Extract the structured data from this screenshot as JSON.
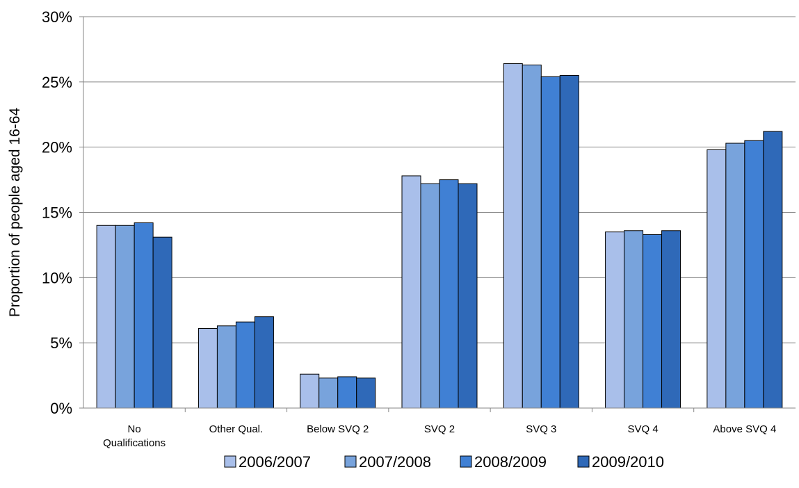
{
  "chart_data": {
    "type": "bar",
    "title": "",
    "xlabel": "",
    "ylabel": "Proportion of people aged 16-64",
    "ylim": [
      0,
      30
    ],
    "y_ticks": [
      "0%",
      "5%",
      "10%",
      "15%",
      "20%",
      "25%",
      "30%"
    ],
    "y_tick_values": [
      0,
      5,
      10,
      15,
      20,
      25,
      30
    ],
    "grid": true,
    "legend_position": "bottom",
    "categories": [
      [
        "No",
        "Qualifications"
      ],
      [
        "Other Qual."
      ],
      [
        "Below SVQ 2"
      ],
      [
        "SVQ 2"
      ],
      [
        "SVQ 3"
      ],
      [
        "SVQ 4"
      ],
      [
        "Above SVQ 4"
      ]
    ],
    "series": [
      {
        "name": "2006/2007",
        "color": "#a9bfea",
        "values": [
          14.0,
          6.1,
          2.6,
          17.8,
          26.4,
          13.5,
          19.8
        ]
      },
      {
        "name": "2007/2008",
        "color": "#78a3dc",
        "values": [
          14.0,
          6.3,
          2.3,
          17.2,
          26.3,
          13.6,
          20.3
        ]
      },
      {
        "name": "2008/2009",
        "color": "#4080d4",
        "values": [
          14.2,
          6.6,
          2.4,
          17.5,
          25.4,
          13.3,
          20.5
        ]
      },
      {
        "name": "2009/2010",
        "color": "#2f69b8",
        "values": [
          13.1,
          7.0,
          2.3,
          17.2,
          25.5,
          13.6,
          21.2
        ]
      }
    ]
  }
}
